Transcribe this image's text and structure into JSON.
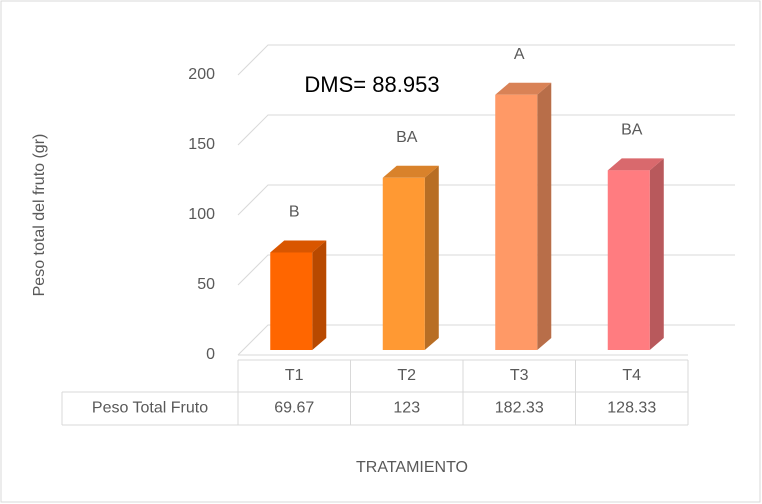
{
  "chart_data": {
    "type": "bar3d",
    "annotation": "DMS= 88.953",
    "ylabel": "Peso total del fruto (gr)",
    "xlabel": "TRATAMIENTO",
    "categories": [
      "T1",
      "T2",
      "T3",
      "T4"
    ],
    "series": [
      {
        "name": "Peso Total Fruto",
        "values": [
          69.67,
          123,
          182.33,
          128.33
        ],
        "colors": [
          "#ff6600",
          "#ff9933",
          "#ff9966",
          "#ff7c80"
        ],
        "letters": [
          "B",
          "BA",
          "A",
          "BA"
        ]
      }
    ],
    "ylim": [
      0,
      200
    ],
    "yticks": [
      0,
      50,
      100,
      150,
      200
    ],
    "grid": true
  }
}
